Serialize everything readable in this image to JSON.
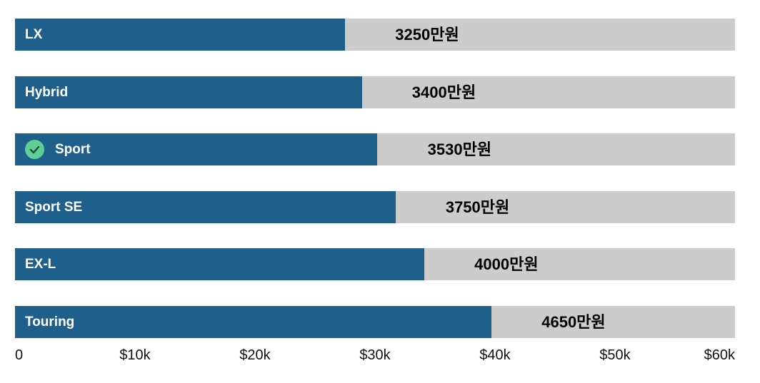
{
  "chart_data": {
    "type": "bar",
    "orientation": "horizontal",
    "categories": [
      "LX",
      "Hybrid",
      "Sport",
      "Sport SE",
      "EX-L",
      "Touring"
    ],
    "values": [
      27500,
      28900,
      30200,
      31700,
      34100,
      39700
    ],
    "value_labels": [
      "3250만원",
      "3400만원",
      "3530만원",
      "3750만원",
      "4000만원",
      "4650만원"
    ],
    "selected_index": 2,
    "xlim": [
      0,
      60000
    ],
    "x_ticks": [
      "0",
      "$10k",
      "$20k",
      "$30k",
      "$40k",
      "$50k",
      "$60k"
    ],
    "grid": false,
    "colors": {
      "bar": "#1f5f8b",
      "track": "#cccccc",
      "check": "#5fcf95"
    }
  }
}
